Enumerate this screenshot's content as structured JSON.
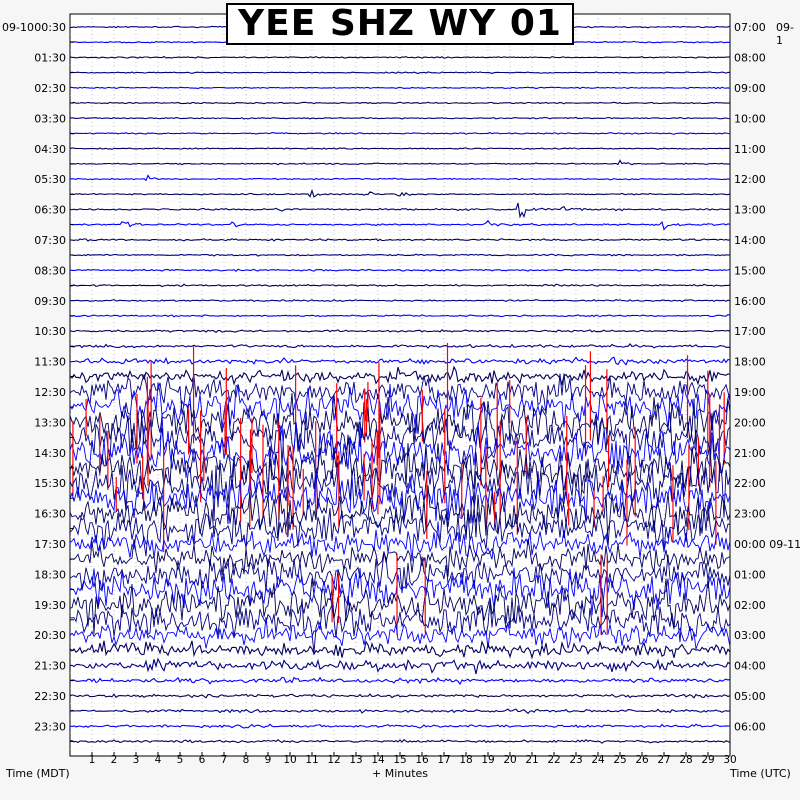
{
  "chart_data": {
    "type": "helicorder",
    "title": "YEE SHZ WY 01",
    "left_date": "09-10",
    "right_date": "09-1",
    "left_axis_label": "Time (MDT)",
    "right_axis_label": "Time (UTC)",
    "x_axis_label": "+ Minutes",
    "x_ticks": [
      "1",
      "2",
      "3",
      "4",
      "5",
      "6",
      "7",
      "8",
      "9",
      "10",
      "11",
      "12",
      "13",
      "14",
      "15",
      "16",
      "17",
      "18",
      "19",
      "20",
      "21",
      "22",
      "23",
      "24",
      "25",
      "26",
      "27",
      "28",
      "29",
      "30"
    ],
    "left_time_labels": [
      "00:30",
      "01:30",
      "02:30",
      "03:30",
      "04:30",
      "05:30",
      "06:30",
      "07:30",
      "08:30",
      "09:30",
      "10:30",
      "11:30",
      "12:30",
      "13:30",
      "14:30",
      "15:30",
      "16:30",
      "17:30",
      "18:30",
      "19:30",
      "20:30",
      "21:30",
      "22:30",
      "23:30"
    ],
    "right_time_labels": [
      "07:00",
      "08:00",
      "09:00",
      "10:00",
      "11:00",
      "12:00",
      "13:00",
      "14:00",
      "15:00",
      "16:00",
      "17:00",
      "18:00",
      "19:00",
      "20:00",
      "21:00",
      "22:00",
      "23:00",
      "00:00 09-11",
      "01:00",
      "02:00",
      "03:00",
      "04:00",
      "05:00",
      "06:00"
    ],
    "minutes_per_line": 30,
    "line_count": 48,
    "trace_colors": [
      "#000080",
      "#0000ff",
      "#00005a"
    ],
    "clip_color": "#ff0000",
    "grid_color": "#9a9a9a",
    "activity_level": [
      0.01,
      0.01,
      0.01,
      0.01,
      0.01,
      0.01,
      0.01,
      0.01,
      0.01,
      0.01,
      0.01,
      0.01,
      0.02,
      0.02,
      0.02,
      0.02,
      0.02,
      0.02,
      0.02,
      0.02,
      0.03,
      0.05,
      0.1,
      0.25,
      0.55,
      0.85,
      0.95,
      1.0,
      1.0,
      1.0,
      1.0,
      1.0,
      0.9,
      0.75,
      0.6,
      0.6,
      0.7,
      0.8,
      0.85,
      0.75,
      0.5,
      0.3,
      0.2,
      0.08,
      0.05,
      0.04,
      0.04,
      0.04
    ],
    "events": [
      {
        "line": 10,
        "minute": 3.5,
        "amplitude": 0.35
      },
      {
        "line": 11,
        "minute": 11,
        "amplitude": 0.5
      },
      {
        "line": 11,
        "minute": 13.5,
        "amplitude": 0.45
      },
      {
        "line": 11,
        "minute": 15,
        "amplitude": 0.3
      },
      {
        "line": 12,
        "minute": 9.5,
        "amplitude": 0.3
      },
      {
        "line": 12,
        "minute": 22.5,
        "amplitude": 0.5
      },
      {
        "line": 12,
        "minute": 20.5,
        "amplitude": 0.9
      },
      {
        "line": 13,
        "minute": 2.5,
        "amplitude": 0.35
      },
      {
        "line": 13,
        "minute": 7.5,
        "amplitude": 0.3
      },
      {
        "line": 13,
        "minute": 19,
        "amplitude": 0.55
      },
      {
        "line": 13,
        "minute": 27,
        "amplitude": 0.5
      },
      {
        "line": 9,
        "minute": 25,
        "amplitude": 0.25
      },
      {
        "line": 14,
        "minute": 0.5,
        "amplitude": 0.15
      }
    ]
  }
}
